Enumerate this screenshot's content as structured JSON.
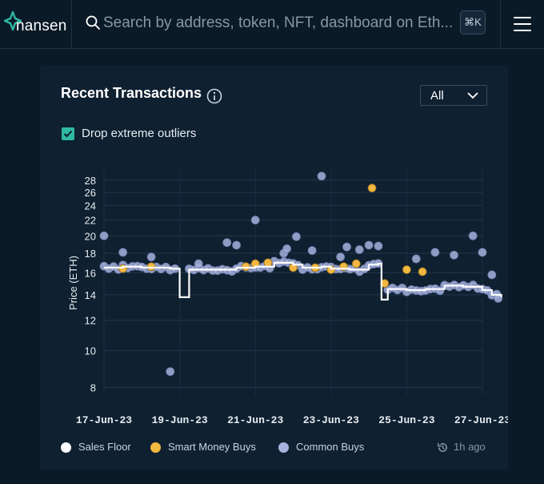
{
  "header": {
    "logo_text": "nansen",
    "search_placeholder": "Search by address, token, NFT, dashboard on Eth...",
    "shortcut": "⌘K",
    "menu_icon": "hamburger-menu-icon"
  },
  "card": {
    "title": "Recent Transactions",
    "info_icon": "info-icon",
    "filter": {
      "selected": "All"
    },
    "outlier_toggle": {
      "label": "Drop extreme outliers",
      "checked": true
    },
    "updated": "1h ago"
  },
  "colors": {
    "sales_floor": "#ffffff",
    "smart_money": "#f2b740",
    "common": "#a7b3dd",
    "accent_teal": "#2fb9a3"
  },
  "chart_data": {
    "type": "scatter",
    "ylabel": "Price (ETH)",
    "y_scale": "log",
    "y_ticks": [
      8,
      10,
      12,
      14,
      16,
      18,
      20,
      22,
      24,
      26,
      28
    ],
    "x_ticks": [
      "17-Jun-23",
      "19-Jun-23",
      "21-Jun-23",
      "23-Jun-23",
      "25-Jun-23",
      "27-Jun-23"
    ],
    "x_range": [
      "2023-06-17",
      "2023-06-27"
    ],
    "legend": [
      "Sales Floor",
      "Smart Money Buys",
      "Common Buys"
    ],
    "legend_position": "bottom",
    "series": [
      {
        "name": "Sales Floor",
        "type": "step-line",
        "points": [
          [
            "2023-06-17",
            16.5
          ],
          [
            "2023-06-17T12:00",
            16.6
          ],
          [
            "2023-06-18",
            16.5
          ],
          [
            "2023-06-18T18:00",
            16.4
          ],
          [
            "2023-06-19",
            13.8
          ],
          [
            "2023-06-19T06:00",
            16.3
          ],
          [
            "2023-06-19T18:00",
            16.3
          ],
          [
            "2023-06-20",
            16.3
          ],
          [
            "2023-06-20T12:00",
            16.5
          ],
          [
            "2023-06-21",
            16.6
          ],
          [
            "2023-06-21T12:00",
            17.0
          ],
          [
            "2023-06-22",
            16.8
          ],
          [
            "2023-06-22T06:00",
            16.5
          ],
          [
            "2023-06-22T18:00",
            16.6
          ],
          [
            "2023-06-23",
            16.4
          ],
          [
            "2023-06-23T12:00",
            16.3
          ],
          [
            "2023-06-24",
            16.8
          ],
          [
            "2023-06-24T06:00",
            16.9
          ],
          [
            "2023-06-24T08:00",
            13.6
          ],
          [
            "2023-06-24T12:00",
            14.5
          ],
          [
            "2023-06-25",
            14.4
          ],
          [
            "2023-06-25T12:00",
            14.5
          ],
          [
            "2023-06-26",
            14.8
          ],
          [
            "2023-06-26T12:00",
            14.7
          ],
          [
            "2023-06-27",
            14.4
          ],
          [
            "2023-06-27T06:00",
            14.0
          ],
          [
            "2023-06-27T12:00",
            13.8
          ]
        ]
      },
      {
        "name": "Smart Money Buys",
        "points": [
          [
            "2023-06-17T12:00",
            16.4
          ],
          [
            "2023-06-18T06:00",
            16.6
          ],
          [
            "2023-06-20T18:00",
            16.6
          ],
          [
            "2023-06-21T00:00",
            16.9
          ],
          [
            "2023-06-21T08:00",
            17.0
          ],
          [
            "2023-06-22T00:00",
            16.5
          ],
          [
            "2023-06-22T14:00",
            16.5
          ],
          [
            "2023-06-23T00:00",
            16.3
          ],
          [
            "2023-06-23T08:00",
            16.6
          ],
          [
            "2023-06-23T16:00",
            16.9
          ],
          [
            "2023-06-24T02:00",
            26.7
          ],
          [
            "2023-06-24T10:00",
            15.0
          ],
          [
            "2023-06-25T00:00",
            16.3
          ],
          [
            "2023-06-25T10:00",
            16.1
          ]
        ]
      },
      {
        "name": "Common Buys",
        "points": [
          [
            "2023-06-17T00:00",
            20.0
          ],
          [
            "2023-06-17T12:00",
            18.1
          ],
          [
            "2023-06-18T06:00",
            17.6
          ],
          [
            "2023-06-18T18:00",
            8.8
          ],
          [
            "2023-06-19T12:00",
            16.9
          ],
          [
            "2023-06-20T06:00",
            19.2
          ],
          [
            "2023-06-20T12:00",
            18.9
          ],
          [
            "2023-06-21T00:00",
            22.0
          ],
          [
            "2023-06-21T18:00",
            18.0
          ],
          [
            "2023-06-21T20:00",
            18.5
          ],
          [
            "2023-06-22T02:00",
            19.9
          ],
          [
            "2023-06-22T12:00",
            18.3
          ],
          [
            "2023-06-22T18:00",
            28.7
          ],
          [
            "2023-06-23T06:00",
            17.6
          ],
          [
            "2023-06-23T10:00",
            18.7
          ],
          [
            "2023-06-23T18:00",
            18.4
          ],
          [
            "2023-06-24T00:00",
            18.9
          ],
          [
            "2023-06-24T06:00",
            18.8
          ],
          [
            "2023-06-25T06:00",
            17.4
          ],
          [
            "2023-06-25T18:00",
            18.1
          ],
          [
            "2023-06-26T06:00",
            17.8
          ],
          [
            "2023-06-26T18:00",
            20.0
          ],
          [
            "2023-06-27T00:00",
            18.1
          ],
          [
            "2023-06-27T06:00",
            15.8
          ],
          [
            "2023-06-27T10:00",
            13.7
          ]
        ]
      }
    ]
  }
}
